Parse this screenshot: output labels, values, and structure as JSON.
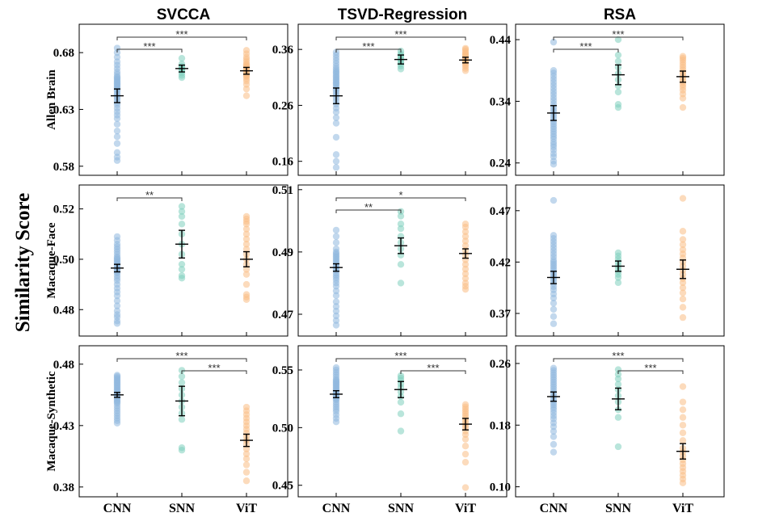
{
  "figure": {
    "ylabel": "Similarity Score"
  },
  "chart_data": {
    "type": "scatter",
    "ylabel": "Similarity Score",
    "columns": [
      "SVCCA",
      "TSVD-Regression",
      "RSA"
    ],
    "rows": [
      "Allen Brain",
      "Macaque-Face",
      "Macaque-Synthetic"
    ],
    "categories": [
      "CNN",
      "SNN",
      "ViT"
    ],
    "colors": {
      "CNN": "#8fb8de",
      "SNN": "#7fd0bd",
      "ViT": "#f9be85"
    },
    "panels": [
      {
        "row": 0,
        "col": 0,
        "ylim": [
          0.572,
          0.705
        ],
        "yticks": [
          0.58,
          0.63,
          0.68
        ],
        "points": {
          "CNN": [
            0.585,
            0.588,
            0.592,
            0.6,
            0.606,
            0.611,
            0.617,
            0.622,
            0.625,
            0.628,
            0.631,
            0.634,
            0.636,
            0.638,
            0.64,
            0.641,
            0.643,
            0.644,
            0.646,
            0.647,
            0.648,
            0.649,
            0.65,
            0.651,
            0.652,
            0.653,
            0.654,
            0.655,
            0.656,
            0.657,
            0.658,
            0.659,
            0.661,
            0.663,
            0.666,
            0.669,
            0.672,
            0.676,
            0.68,
            0.684
          ],
          "SNN": [
            0.658,
            0.66,
            0.662,
            0.664,
            0.665,
            0.666,
            0.667,
            0.668,
            0.67,
            0.675
          ],
          "ViT": [
            0.642,
            0.648,
            0.652,
            0.655,
            0.657,
            0.659,
            0.66,
            0.661,
            0.662,
            0.663,
            0.664,
            0.665,
            0.666,
            0.667,
            0.668,
            0.669,
            0.67,
            0.672,
            0.674,
            0.676,
            0.679,
            0.682
          ]
        },
        "means": {
          "CNN": 0.642,
          "SNN": 0.666,
          "ViT": 0.664
        },
        "errs": {
          "CNN": 0.006,
          "SNN": 0.003,
          "ViT": 0.003
        },
        "sig": [
          {
            "from": 0,
            "to": 1,
            "label": "***"
          },
          {
            "from": 0,
            "to": 2,
            "label": "***"
          }
        ]
      },
      {
        "row": 0,
        "col": 1,
        "ylim": [
          0.135,
          0.405
        ],
        "yticks": [
          0.16,
          0.26,
          0.36
        ],
        "points": {
          "CNN": [
            0.149,
            0.16,
            0.172,
            0.203,
            0.228,
            0.238,
            0.248,
            0.255,
            0.262,
            0.268,
            0.273,
            0.278,
            0.282,
            0.286,
            0.289,
            0.292,
            0.295,
            0.298,
            0.3,
            0.302,
            0.305,
            0.307,
            0.31,
            0.312,
            0.315,
            0.318,
            0.32,
            0.323,
            0.326,
            0.33,
            0.335,
            0.34,
            0.345,
            0.35,
            0.355
          ],
          "SNN": [
            0.325,
            0.33,
            0.334,
            0.337,
            0.34,
            0.343,
            0.346,
            0.349,
            0.352,
            0.357
          ],
          "ViT": [
            0.322,
            0.326,
            0.33,
            0.333,
            0.336,
            0.338,
            0.34,
            0.342,
            0.344,
            0.346,
            0.348,
            0.35,
            0.352,
            0.354,
            0.357,
            0.36,
            0.362
          ]
        },
        "means": {
          "CNN": 0.277,
          "SNN": 0.342,
          "ViT": 0.341
        },
        "errs": {
          "CNN": 0.014,
          "SNN": 0.008,
          "ViT": 0.005
        },
        "sig": [
          {
            "from": 0,
            "to": 1,
            "label": "***"
          },
          {
            "from": 0,
            "to": 2,
            "label": "***"
          }
        ]
      },
      {
        "row": 0,
        "col": 2,
        "ylim": [
          0.22,
          0.465
        ],
        "yticks": [
          0.24,
          0.34,
          0.44
        ],
        "points": {
          "CNN": [
            0.238,
            0.243,
            0.25,
            0.255,
            0.261,
            0.266,
            0.27,
            0.274,
            0.279,
            0.283,
            0.287,
            0.291,
            0.295,
            0.299,
            0.303,
            0.307,
            0.311,
            0.315,
            0.319,
            0.323,
            0.327,
            0.331,
            0.336,
            0.341,
            0.346,
            0.351,
            0.356,
            0.361,
            0.366,
            0.371,
            0.376,
            0.381,
            0.386,
            0.39,
            0.436
          ],
          "SNN": [
            0.33,
            0.335,
            0.355,
            0.365,
            0.375,
            0.385,
            0.395,
            0.405,
            0.415,
            0.44
          ],
          "ViT": [
            0.33,
            0.345,
            0.352,
            0.358,
            0.363,
            0.367,
            0.371,
            0.375,
            0.379,
            0.383,
            0.387,
            0.391,
            0.395,
            0.399,
            0.403,
            0.407,
            0.41,
            0.413
          ]
        },
        "means": {
          "CNN": 0.321,
          "SNN": 0.383,
          "ViT": 0.38
        },
        "errs": {
          "CNN": 0.012,
          "SNN": 0.016,
          "ViT": 0.009
        },
        "sig": [
          {
            "from": 0,
            "to": 1,
            "label": "***"
          },
          {
            "from": 0,
            "to": 2,
            "label": "***"
          }
        ]
      },
      {
        "row": 1,
        "col": 0,
        "ylim": [
          0.4695,
          0.5295
        ],
        "yticks": [
          0.48,
          0.5,
          0.52
        ],
        "points": {
          "CNN": [
            0.4745,
            0.4755,
            0.477,
            0.478,
            0.4795,
            0.4815,
            0.4835,
            0.4855,
            0.487,
            0.4885,
            0.49,
            0.4915,
            0.4925,
            0.4935,
            0.4945,
            0.495,
            0.4955,
            0.496,
            0.4965,
            0.497,
            0.4975,
            0.498,
            0.4985,
            0.499,
            0.4995,
            0.5,
            0.5005,
            0.501,
            0.502,
            0.503,
            0.504,
            0.505,
            0.506,
            0.5075,
            0.509
          ],
          "SNN": [
            0.4925,
            0.4935,
            0.496,
            0.498,
            0.502,
            0.506,
            0.51,
            0.514,
            0.517,
            0.519,
            0.521
          ],
          "ViT": [
            0.484,
            0.485,
            0.486,
            0.49,
            0.494,
            0.496,
            0.498,
            0.5,
            0.502,
            0.504,
            0.506,
            0.508,
            0.51,
            0.512,
            0.514,
            0.515,
            0.516,
            0.517
          ]
        },
        "means": {
          "CNN": 0.4965,
          "SNN": 0.506,
          "ViT": 0.5
        },
        "errs": {
          "CNN": 0.0015,
          "SNN": 0.0055,
          "ViT": 0.003
        },
        "sig": [
          {
            "from": 0,
            "to": 1,
            "label": "**"
          }
        ]
      },
      {
        "row": 1,
        "col": 1,
        "ylim": [
          0.463,
          0.5115
        ],
        "yticks": [
          0.47,
          0.49,
          0.51
        ],
        "points": {
          "CNN": [
            0.4665,
            0.468,
            0.4695,
            0.471,
            0.4725,
            0.474,
            0.476,
            0.4775,
            0.479,
            0.48,
            0.481,
            0.4818,
            0.4825,
            0.4832,
            0.484,
            0.4845,
            0.485,
            0.4855,
            0.486,
            0.4865,
            0.487,
            0.4875,
            0.488,
            0.4885,
            0.489,
            0.4895,
            0.49,
            0.491,
            0.493,
            0.495,
            0.497
          ],
          "SNN": [
            0.48,
            0.486,
            0.489,
            0.491,
            0.493,
            0.495,
            0.4975,
            0.499,
            0.5015,
            0.503
          ],
          "ViT": [
            0.478,
            0.479,
            0.48,
            0.4815,
            0.483,
            0.4845,
            0.486,
            0.4875,
            0.489,
            0.4905,
            0.492,
            0.4935,
            0.495,
            0.4965,
            0.498,
            0.499
          ]
        },
        "means": {
          "CNN": 0.485,
          "SNN": 0.492,
          "ViT": 0.4895
        },
        "errs": {
          "CNN": 0.0012,
          "SNN": 0.0025,
          "ViT": 0.0015
        },
        "sig": [
          {
            "from": 0,
            "to": 1,
            "label": "**"
          },
          {
            "from": 0,
            "to": 2,
            "label": "*"
          }
        ]
      },
      {
        "row": 1,
        "col": 2,
        "ylim": [
          0.348,
          0.495
        ],
        "yticks": [
          0.37,
          0.42,
          0.47
        ],
        "points": {
          "CNN": [
            0.36,
            0.367,
            0.374,
            0.38,
            0.385,
            0.389,
            0.393,
            0.396,
            0.399,
            0.402,
            0.404,
            0.406,
            0.408,
            0.41,
            0.412,
            0.414,
            0.416,
            0.418,
            0.42,
            0.422,
            0.425,
            0.428,
            0.431,
            0.434,
            0.437,
            0.44,
            0.443,
            0.446,
            0.48
          ],
          "SNN": [
            0.4,
            0.405,
            0.408,
            0.411,
            0.414,
            0.417,
            0.42,
            0.423,
            0.426,
            0.429
          ],
          "ViT": [
            0.366,
            0.376,
            0.384,
            0.39,
            0.395,
            0.4,
            0.404,
            0.408,
            0.412,
            0.416,
            0.42,
            0.424,
            0.428,
            0.432,
            0.437,
            0.442,
            0.45,
            0.482
          ]
        },
        "means": {
          "CNN": 0.405,
          "SNN": 0.416,
          "ViT": 0.413
        },
        "errs": {
          "CNN": 0.006,
          "SNN": 0.005,
          "ViT": 0.009
        },
        "sig": []
      },
      {
        "row": 2,
        "col": 0,
        "ylim": [
          0.372,
          0.495
        ],
        "yticks": [
          0.38,
          0.43,
          0.48
        ],
        "points": {
          "CNN": [
            0.432,
            0.434,
            0.436,
            0.438,
            0.44,
            0.442,
            0.444,
            0.446,
            0.448,
            0.449,
            0.45,
            0.451,
            0.452,
            0.453,
            0.454,
            0.455,
            0.456,
            0.457,
            0.458,
            0.459,
            0.46,
            0.461,
            0.462,
            0.463,
            0.464,
            0.465,
            0.466,
            0.467,
            0.468,
            0.469,
            0.47,
            0.471
          ],
          "SNN": [
            0.41,
            0.412,
            0.435,
            0.44,
            0.445,
            0.45,
            0.455,
            0.46,
            0.465,
            0.47,
            0.475
          ],
          "ViT": [
            0.385,
            0.392,
            0.398,
            0.403,
            0.407,
            0.411,
            0.415,
            0.418,
            0.421,
            0.424,
            0.427,
            0.43,
            0.433,
            0.436,
            0.439,
            0.442,
            0.445
          ]
        },
        "means": {
          "CNN": 0.455,
          "SNN": 0.45,
          "ViT": 0.418
        },
        "errs": {
          "CNN": 0.002,
          "SNN": 0.012,
          "ViT": 0.005
        },
        "sig": [
          {
            "from": 0,
            "to": 2,
            "label": "***"
          },
          {
            "from": 1,
            "to": 2,
            "label": "***"
          }
        ]
      },
      {
        "row": 2,
        "col": 1,
        "ylim": [
          0.44,
          0.571
        ],
        "yticks": [
          0.45,
          0.5,
          0.55
        ],
        "points": {
          "CNN": [
            0.505,
            0.508,
            0.511,
            0.514,
            0.516,
            0.518,
            0.52,
            0.522,
            0.524,
            0.525,
            0.526,
            0.527,
            0.528,
            0.529,
            0.53,
            0.531,
            0.532,
            0.533,
            0.534,
            0.535,
            0.536,
            0.537,
            0.538,
            0.539,
            0.54,
            0.541,
            0.542,
            0.544,
            0.546,
            0.548,
            0.55,
            0.552
          ],
          "SNN": [
            0.497,
            0.512,
            0.522,
            0.527,
            0.531,
            0.535,
            0.538,
            0.541,
            0.543,
            0.545
          ],
          "ViT": [
            0.448,
            0.47,
            0.477,
            0.484,
            0.49,
            0.494,
            0.497,
            0.5,
            0.502,
            0.504,
            0.506,
            0.508,
            0.51,
            0.512,
            0.514,
            0.516,
            0.518,
            0.52
          ]
        },
        "means": {
          "CNN": 0.529,
          "SNN": 0.533,
          "ViT": 0.503
        },
        "errs": {
          "CNN": 0.003,
          "SNN": 0.007,
          "ViT": 0.005
        },
        "sig": [
          {
            "from": 0,
            "to": 2,
            "label": "***"
          },
          {
            "from": 1,
            "to": 2,
            "label": "***"
          }
        ]
      },
      {
        "row": 2,
        "col": 2,
        "ylim": [
          0.087,
          0.283
        ],
        "yticks": [
          0.1,
          0.18,
          0.26
        ],
        "points": {
          "CNN": [
            0.145,
            0.155,
            0.165,
            0.172,
            0.178,
            0.183,
            0.188,
            0.192,
            0.196,
            0.2,
            0.203,
            0.206,
            0.209,
            0.212,
            0.215,
            0.218,
            0.221,
            0.224,
            0.227,
            0.23,
            0.233,
            0.236,
            0.239,
            0.242,
            0.245,
            0.248,
            0.251,
            0.254
          ],
          "SNN": [
            0.152,
            0.19,
            0.2,
            0.21,
            0.218,
            0.226,
            0.233,
            0.24,
            0.246,
            0.252
          ],
          "ViT": [
            0.105,
            0.11,
            0.115,
            0.12,
            0.125,
            0.13,
            0.135,
            0.14,
            0.145,
            0.15,
            0.16,
            0.17,
            0.18,
            0.19,
            0.2,
            0.21,
            0.23
          ]
        },
        "means": {
          "CNN": 0.217,
          "SNN": 0.214,
          "ViT": 0.146
        },
        "errs": {
          "CNN": 0.006,
          "SNN": 0.014,
          "ViT": 0.01
        },
        "sig": [
          {
            "from": 0,
            "to": 2,
            "label": "***"
          },
          {
            "from": 1,
            "to": 2,
            "label": "***"
          }
        ]
      }
    ]
  }
}
